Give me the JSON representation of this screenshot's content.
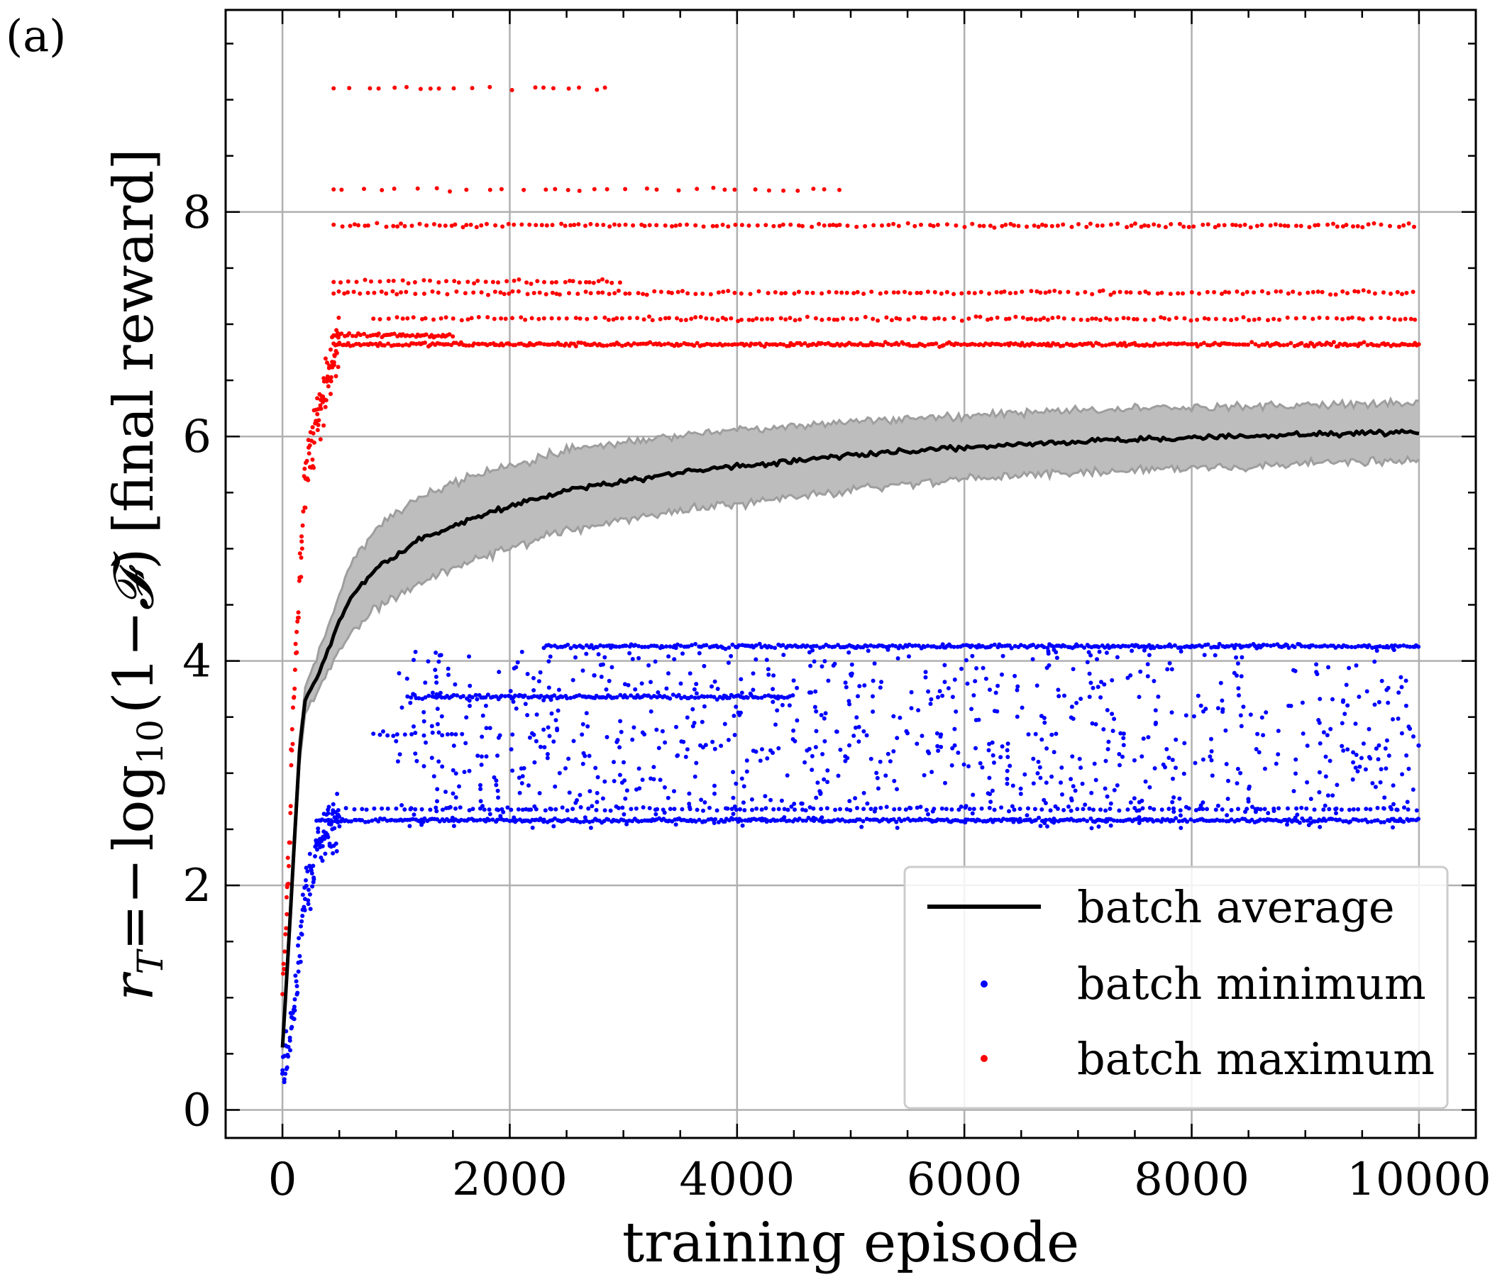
{
  "panel_label": "(a)",
  "chart_data": {
    "type": "scatter",
    "xlabel": "training episode",
    "ylabel": {
      "lhs": "r",
      "lhs_sub": "T",
      "eq": "=",
      "minus": "−",
      "func": "log",
      "func_sub": "10",
      "arg": "(1−",
      "F": "𝓕",
      "close": ")",
      "tail": "[final reward]"
    },
    "xlim": [
      -500,
      10500
    ],
    "ylim": [
      -0.25,
      9.8
    ],
    "xticks": [
      0,
      2000,
      4000,
      6000,
      8000,
      10000
    ],
    "xtick_labels": [
      "0",
      "2000",
      "4000",
      "6000",
      "8000",
      "10000"
    ],
    "yticks": [
      0,
      2,
      4,
      6,
      8
    ],
    "ytick_labels": [
      "0",
      "2",
      "4",
      "6",
      "8"
    ],
    "grid": true,
    "legend_position": "bottom-right",
    "legend": [
      {
        "label": "batch average",
        "marker": "line",
        "color": "#000000"
      },
      {
        "label": "batch minimum",
        "marker": "dot",
        "color": "#0000ff"
      },
      {
        "label": "batch maximum",
        "marker": "dot",
        "color": "#ff0000"
      }
    ],
    "series": [
      {
        "name": "batch average",
        "kind": "line",
        "color": "#000000",
        "band_color": "#bdbdbd",
        "x": [
          0,
          50,
          100,
          150,
          200,
          300,
          400,
          500,
          600,
          800,
          1000,
          1250,
          1500,
          2000,
          2500,
          3000,
          3500,
          4000,
          4500,
          5000,
          5500,
          6000,
          6500,
          7000,
          7500,
          8000,
          8500,
          9000,
          9500,
          10000
        ],
        "y": [
          0.55,
          1.4,
          2.3,
          3.2,
          3.65,
          3.85,
          4.1,
          4.35,
          4.55,
          4.8,
          4.95,
          5.1,
          5.2,
          5.38,
          5.52,
          5.6,
          5.68,
          5.73,
          5.78,
          5.83,
          5.87,
          5.9,
          5.93,
          5.95,
          5.97,
          5.99,
          6.0,
          6.02,
          6.03,
          6.04
        ],
        "band_halfwidth": [
          0.05,
          0.08,
          0.1,
          0.12,
          0.12,
          0.15,
          0.2,
          0.25,
          0.3,
          0.35,
          0.38,
          0.38,
          0.38,
          0.37,
          0.36,
          0.35,
          0.34,
          0.33,
          0.32,
          0.31,
          0.3,
          0.29,
          0.28,
          0.28,
          0.27,
          0.27,
          0.27,
          0.26,
          0.26,
          0.26
        ]
      },
      {
        "name": "batch maximum",
        "kind": "scatter",
        "color": "#ff0000",
        "rise": {
          "x": [
            0,
            50,
            100,
            150,
            200,
            300,
            400,
            500
          ],
          "y": [
            1.0,
            2.2,
            3.6,
            4.8,
            5.6,
            6.1,
            6.5,
            6.9
          ]
        },
        "levels": [
          {
            "y": 6.82,
            "x_start": 450,
            "x_end": 10000,
            "density": "dense"
          },
          {
            "y": 6.9,
            "x_start": 450,
            "x_end": 1500,
            "density": "dense"
          },
          {
            "y": 7.05,
            "x_start": 800,
            "x_end": 10000,
            "density": "medium"
          },
          {
            "y": 7.28,
            "x_start": 450,
            "x_end": 10000,
            "density": "medium"
          },
          {
            "y": 7.38,
            "x_start": 450,
            "x_end": 3000,
            "density": "medium"
          },
          {
            "y": 7.88,
            "x_start": 450,
            "x_end": 10000,
            "density": "medium"
          },
          {
            "y": 8.2,
            "x_start": 450,
            "x_end": 5000,
            "density": "sparse"
          },
          {
            "y": 9.1,
            "x_start": 450,
            "x_end": 2950,
            "density": "sparse"
          }
        ]
      },
      {
        "name": "batch minimum",
        "kind": "scatter",
        "color": "#0000ff",
        "rise": {
          "x": [
            0,
            50,
            100,
            150,
            200,
            300,
            400,
            500
          ],
          "y": [
            0.3,
            0.5,
            0.9,
            1.4,
            1.9,
            2.3,
            2.5,
            2.55
          ]
        },
        "levels": [
          {
            "y": 2.58,
            "x_start": 300,
            "x_end": 10000,
            "density": "dense"
          },
          {
            "y": 2.68,
            "x_start": 400,
            "x_end": 10000,
            "density": "medium"
          },
          {
            "y": 3.35,
            "x_start": 800,
            "x_end": 1600,
            "density": "medium"
          },
          {
            "y": 3.68,
            "x_start": 1100,
            "x_end": 4500,
            "density": "dense"
          },
          {
            "y": 4.13,
            "x_start": 2300,
            "x_end": 10000,
            "density": "dense"
          }
        ],
        "scatter_region": {
          "x": [
            1000,
            10000
          ],
          "y": [
            2.5,
            4.1
          ]
        }
      }
    ]
  }
}
